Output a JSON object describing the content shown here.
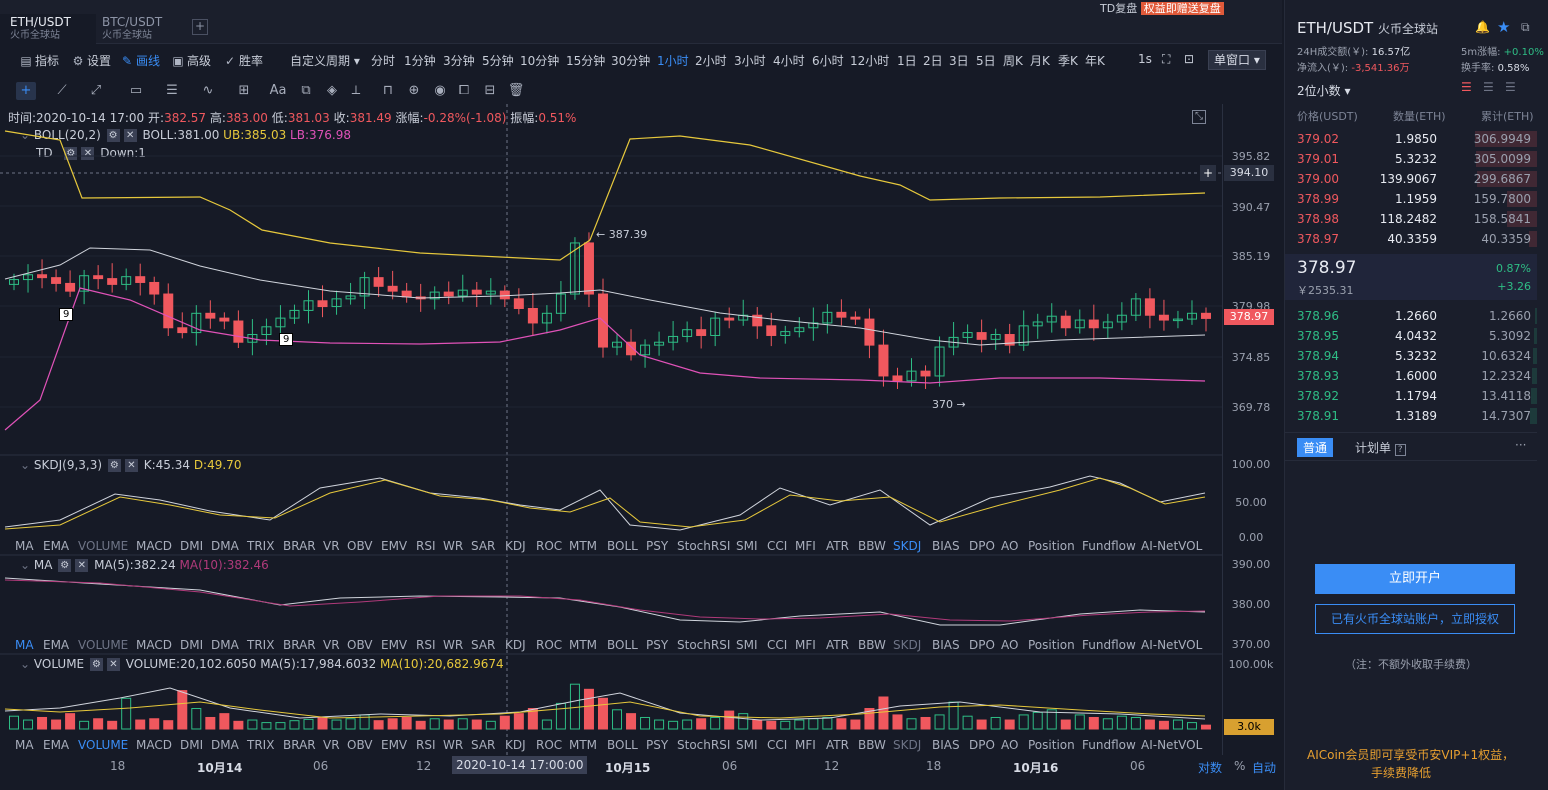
{
  "tabs": [
    {
      "pair": "ETH/USDT",
      "exchange": "火币全球站",
      "active": true
    },
    {
      "pair": "BTC/USDT",
      "exchange": "火币全球站",
      "active": false
    }
  ],
  "add_tab": "+",
  "toolbar": {
    "indicators": "指标",
    "settings": "设置",
    "draw": "画线",
    "advanced": "高级",
    "winrate": "胜率",
    "custom_period": "自定义周期",
    "periods": [
      "分时",
      "1分钟",
      "3分钟",
      "5分钟",
      "10分钟",
      "15分钟",
      "30分钟",
      "1小时",
      "2小时",
      "3小时",
      "4小时",
      "6小时",
      "12小时",
      "1日",
      "2日",
      "3日",
      "5日",
      "周K",
      "月K",
      "季K",
      "年K"
    ],
    "active_period": "1小时",
    "interval": "1s",
    "window_mode": "单窗口"
  },
  "info_bar": {
    "time_label": "时间:",
    "time": "2020-10-14 17:00",
    "open_label": "开:",
    "open": "382.57",
    "high_label": "高:",
    "high": "383.00",
    "low_label": "低:",
    "low": "381.03",
    "close_label": "收:",
    "close": "381.49",
    "change_label": "涨幅:",
    "change": "-0.28%(-1.08)",
    "amplitude_label": "振幅:",
    "amplitude": "0.51%"
  },
  "boll": {
    "name": "BOLL(20,2)",
    "mid": "BOLL:381.00",
    "ub": "UB:385.03",
    "lb": "LB:376.98"
  },
  "td": {
    "name": "TD",
    "value": "Down:1"
  },
  "annotations": {
    "high": "← 387.39",
    "low": "370 →",
    "td_a": "9",
    "td_b": "9"
  },
  "price_axis": [
    "395.82",
    "390.47",
    "385.19",
    "379.98",
    "374.85",
    "369.78"
  ],
  "crosshair_price": "394.10",
  "last_price_tag": "378.97",
  "skdj": {
    "name": "SKDJ(9,3,3)",
    "k": "K:45.34",
    "d": "D:49.70",
    "axis": [
      "100.00",
      "50.00",
      "0.00"
    ]
  },
  "ma": {
    "name": "MA",
    "ma5": "MA(5):382.24",
    "ma10": "MA(10):382.46",
    "axis": [
      "390.00",
      "380.00",
      "370.00"
    ]
  },
  "volume": {
    "name": "VOLUME",
    "value": "VOLUME:20,102.6050",
    "ma5": "MA(5):17,984.6032",
    "ma10": "MA(10):20,682.9674",
    "axis": [
      "100.00k"
    ],
    "tag": "3.0k"
  },
  "indicator_list": [
    "MA",
    "EMA",
    "VOLUME",
    "MACD",
    "DMI",
    "DMA",
    "TRIX",
    "BRAR",
    "VR",
    "OBV",
    "EMV",
    "RSI",
    "WR",
    "SAR",
    "KDJ",
    "ROC",
    "MTM",
    "BOLL",
    "PSY",
    "StochRSI",
    "SMI",
    "CCI",
    "MFI",
    "ATR",
    "BBW",
    "SKDJ",
    "BIAS",
    "DPO",
    "AO",
    "Position",
    "Fundflow",
    "AI-NetVOL"
  ],
  "time_axis": [
    "18",
    "10月14",
    "06",
    "12",
    "2020-10-14 17:00:00",
    "10月15",
    "06",
    "12",
    "18",
    "10月16",
    "06"
  ],
  "time_axis_right": [
    "对数",
    "%",
    "自动"
  ],
  "right_panel": {
    "pair": "ETH/USDT",
    "exchange": "火币全球站",
    "vol_label": "24H成交额(￥):",
    "vol": "16.57亿",
    "inflow_label": "净流入(￥):",
    "inflow": "-3,541.36万",
    "rise_label": "5m涨幅:",
    "rise": "+0.10%",
    "turnover_label": "换手率:",
    "turnover": "0.58%",
    "decimals": "2位小数",
    "headers": [
      "价格(USDT)",
      "数量(ETH)",
      "累计(ETH)"
    ],
    "asks": [
      {
        "p": "379.02",
        "q": "1.9850",
        "c": "306.9949"
      },
      {
        "p": "379.01",
        "q": "5.3232",
        "c": "305.0099"
      },
      {
        "p": "379.00",
        "q": "139.9067",
        "c": "299.6867"
      },
      {
        "p": "378.99",
        "q": "1.1959",
        "c": "159.7800"
      },
      {
        "p": "378.98",
        "q": "118.2482",
        "c": "158.5841"
      },
      {
        "p": "378.97",
        "q": "40.3359",
        "c": "40.3359"
      }
    ],
    "last": "378.97",
    "last_cny": "￥2535.31",
    "last_pct": "0.87%",
    "last_chg": "+3.26",
    "bids": [
      {
        "p": "378.96",
        "q": "1.2660",
        "c": "1.2660"
      },
      {
        "p": "378.95",
        "q": "4.0432",
        "c": "5.3092"
      },
      {
        "p": "378.94",
        "q": "5.3232",
        "c": "10.6324"
      },
      {
        "p": "378.93",
        "q": "1.6000",
        "c": "12.2324"
      },
      {
        "p": "378.92",
        "q": "1.1794",
        "c": "13.4118"
      },
      {
        "p": "378.91",
        "q": "1.3189",
        "c": "14.7307"
      }
    ],
    "order_tab_normal": "普通",
    "order_tab_plan": "计划单",
    "help": "?",
    "more": "···",
    "open_account": "立即开户",
    "authorize": "已有火币全球站账户，立即授权",
    "note": "（注：不额外收取手续费）",
    "promo1": "AICoin会员即可享受币安VIP+1权益，",
    "promo2": "手续费降低",
    "top_center": "TD复盘",
    "top_link": "权益即赠送复盘"
  },
  "colors": {
    "up": "#2ebd85",
    "down": "#f0585e",
    "accent": "#3a8df5",
    "ub": "#e6c83c",
    "lb": "#e052b8",
    "mid": "#d0d4dc"
  }
}
